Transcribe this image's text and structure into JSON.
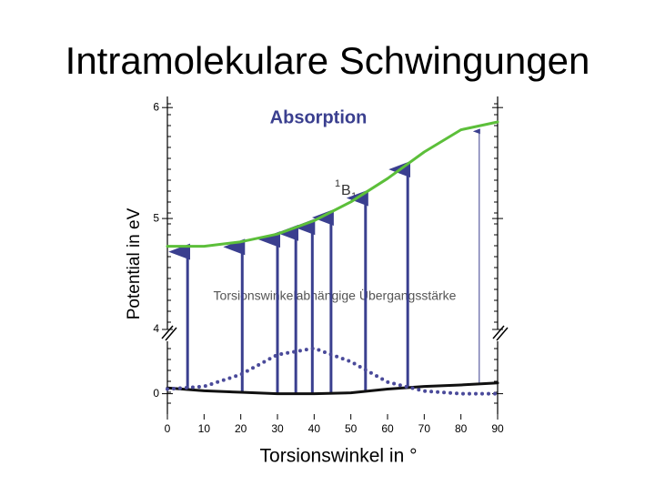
{
  "chart_data": {
    "type": "line",
    "title": "Intramolekulare Schwingungen",
    "x_label": "Torsionswinkel in °",
    "y_label": "Potential in eV",
    "x": [
      0,
      10,
      20,
      30,
      40,
      50,
      60,
      70,
      80,
      90
    ],
    "xlim": [
      0,
      90
    ],
    "xticks": [
      0,
      10,
      20,
      30,
      40,
      50,
      60,
      70,
      80,
      90
    ],
    "upper": {
      "ylim": [
        4,
        6.1
      ],
      "yticks": [
        4,
        5,
        6
      ],
      "series": [
        {
          "color": "#5cbf3a",
          "values": [
            4.75,
            4.75,
            4.79,
            4.86,
            4.98,
            5.15,
            5.36,
            5.6,
            5.8,
            5.87
          ]
        }
      ]
    },
    "lower": {
      "ylim": [
        -0.07,
        0.18
      ],
      "yticks": [
        0
      ],
      "series": [
        {
          "color": "#111111",
          "values": [
            0.02,
            0.01,
            0.005,
            0,
            0,
            0.003,
            0.016,
            0.025,
            0.03,
            0.037
          ]
        },
        {
          "color": "#4a4a9a",
          "dotted": true,
          "values": [
            0.016,
            0.025,
            0.066,
            0.134,
            0.156,
            0.11,
            0.04,
            0.009,
            0,
            0
          ]
        }
      ]
    },
    "transitions": [
      5.5,
      20.4,
      30,
      35,
      39.5,
      44.6,
      54,
      65.5,
      85
    ],
    "transition_color": "#3a3f8f",
    "annotations": {
      "absorption": "Absorption",
      "state_sup": "1",
      "state": "B",
      "state_sub": "1",
      "strength": "Torsionswinkelabhängige Übergangsstärke"
    }
  }
}
